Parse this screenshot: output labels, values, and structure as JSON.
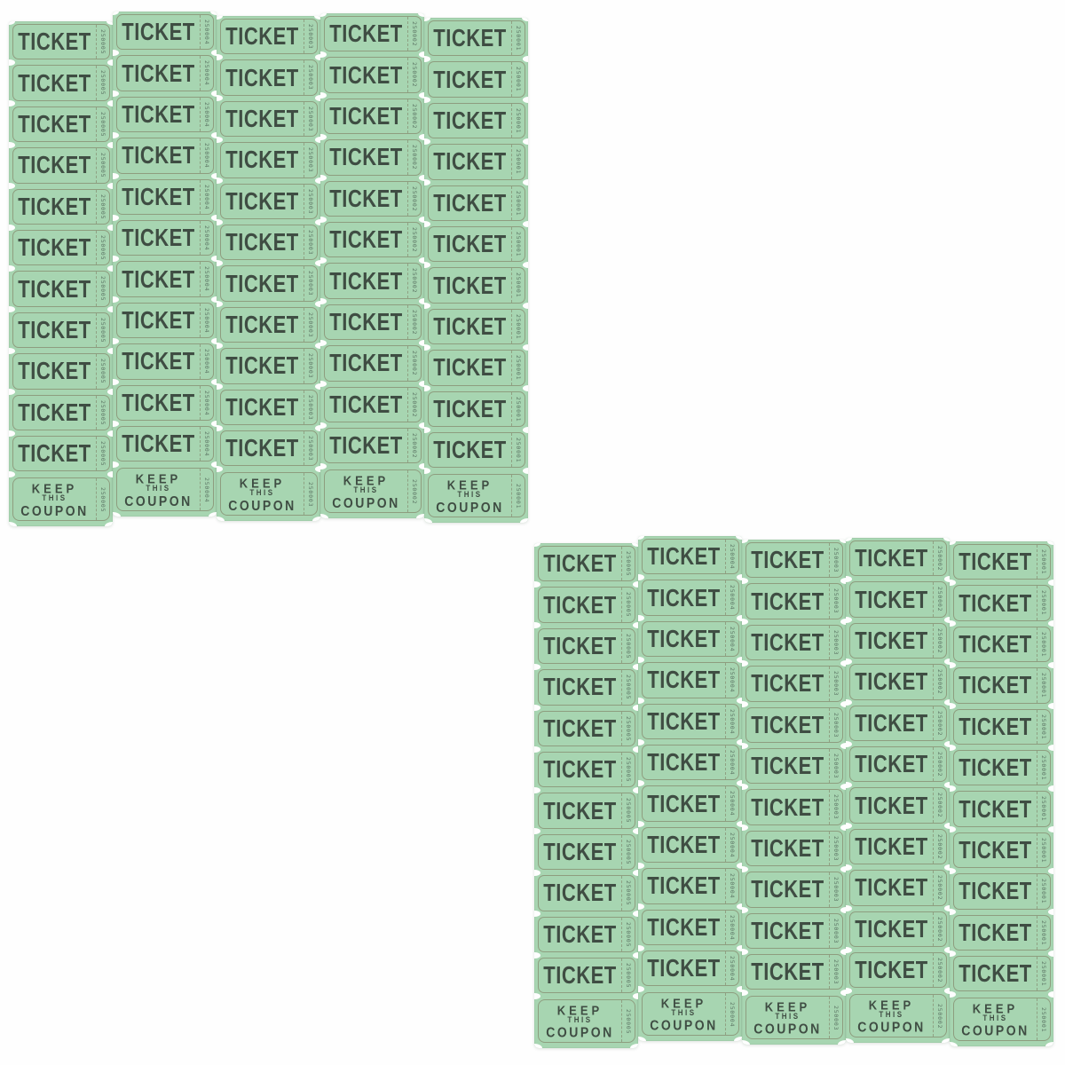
{
  "product": {
    "description": "Two sheets of green single-roll raffle tickets with keep-this-coupon stubs",
    "ticket_label": "TICKET",
    "coupon_lines": [
      "KEEP",
      "THIS",
      "COUPON"
    ],
    "column_serial_numbers": [
      "250005",
      "250004",
      "250003",
      "250002",
      "250001"
    ],
    "sheets": [
      {
        "name": "sheet-1",
        "columns": 5,
        "ticket_rows": 11,
        "coupon_row": true
      },
      {
        "name": "sheet-2",
        "columns": 5,
        "ticket_rows": 11,
        "coupon_row": true
      }
    ],
    "colors": {
      "paper_green": "#a7d5b1",
      "ink_dark": "#37423a",
      "serial_ink": "#52685a",
      "outline_brown": "#7a7056",
      "background_white": "#fefefe"
    }
  }
}
